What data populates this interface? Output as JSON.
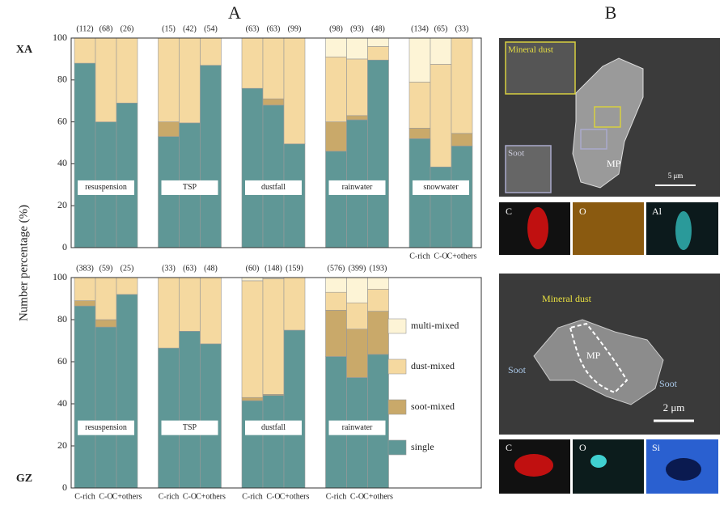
{
  "panel_a_label": "A",
  "panel_b": {
    "label": "B",
    "sem": [
      {
        "annotations": [
          "Mineral dust",
          "Soot",
          "MP",
          "5 μm"
        ],
        "maps": [
          "C",
          "O",
          "Al"
        ]
      },
      {
        "annotations": [
          "Mineral dust",
          "MP",
          "Soot",
          "Soot",
          "2 μm"
        ],
        "maps": [
          "C",
          "O",
          "Si"
        ]
      }
    ]
  },
  "chart_data": [
    {
      "type": "bar",
      "stacked": true,
      "region": "XA",
      "ylabel": "Number percentage (%)",
      "groups": [
        "resuspension",
        "TSP",
        "dustfall",
        "rainwater",
        "snowwater"
      ],
      "categories": [
        null,
        null,
        null,
        null,
        null,
        null,
        null,
        null,
        null,
        null,
        null,
        null,
        "C-rich",
        "C-O",
        "C+others"
      ],
      "n_labels": [
        "(112)",
        "(68)",
        "(26)",
        "(15)",
        "(42)",
        "(54)",
        "(63)",
        "(63)",
        "(99)",
        "(98)",
        "(93)",
        "(48)",
        "(134)",
        "(65)",
        "(33)"
      ],
      "ylim": [
        0,
        100
      ],
      "yticks": [
        0,
        20,
        40,
        60,
        80,
        100
      ],
      "series": [
        {
          "name": "single",
          "color": "#5f9796",
          "values": [
            88,
            60,
            69,
            53,
            59.5,
            87,
            76,
            68,
            49.5,
            46,
            61,
            89.5,
            52,
            38.5,
            48.5
          ]
        },
        {
          "name": "soot-mixed",
          "color": "#c9a96a",
          "values": [
            0,
            0,
            0,
            7,
            0,
            0,
            0,
            3,
            0,
            14,
            2,
            0,
            5,
            0,
            6
          ]
        },
        {
          "name": "dust-mixed",
          "color": "#f5d9a0",
          "values": [
            12,
            40,
            31,
            40,
            40.5,
            13,
            24,
            29,
            50.5,
            31,
            27,
            6.5,
            22,
            49,
            45.5
          ]
        },
        {
          "name": "multi-mixed",
          "color": "#fdf4d6",
          "values": [
            0,
            0,
            0,
            0,
            0,
            0,
            0,
            0,
            0,
            9,
            10,
            4,
            21,
            12.5,
            0
          ]
        }
      ]
    },
    {
      "type": "bar",
      "stacked": true,
      "region": "GZ",
      "legend": "right",
      "groups": [
        "resuspension",
        "TSP",
        "dustfall",
        "rainwater"
      ],
      "categories": [
        "C-rich",
        "C-O",
        "C+others",
        "C-rich",
        "C-O",
        "C+others",
        "C-rich",
        "C-O",
        "C+others",
        "C-rich",
        "C-O",
        "C+others"
      ],
      "n_labels": [
        "(383)",
        "(59)",
        "(25)",
        "(33)",
        "(63)",
        "(48)",
        "(60)",
        "(148)",
        "(159)",
        "(576)",
        "(399)",
        "(193)"
      ],
      "ylim": [
        0,
        100
      ],
      "yticks": [
        0,
        20,
        40,
        60,
        80,
        100
      ],
      "series": [
        {
          "name": "single",
          "color": "#5f9796",
          "values": [
            86.5,
            76.5,
            92,
            66.5,
            74.5,
            68.5,
            41.5,
            44,
            75,
            62.5,
            52.5,
            63.5
          ]
        },
        {
          "name": "soot-mixed",
          "color": "#c9a96a",
          "values": [
            2.5,
            3.5,
            0,
            0,
            0,
            0,
            1.5,
            0.5,
            0,
            22,
            23,
            20.5
          ]
        },
        {
          "name": "dust-mixed",
          "color": "#f5d9a0",
          "values": [
            11,
            20,
            8,
            33.5,
            25.5,
            31.5,
            55.5,
            55,
            25,
            8.5,
            12.5,
            10.5
          ]
        },
        {
          "name": "multi-mixed",
          "color": "#fdf4d6",
          "values": [
            0,
            0,
            0,
            0,
            0,
            0,
            1.5,
            0.5,
            0,
            7,
            12,
            5.5
          ]
        }
      ]
    }
  ]
}
